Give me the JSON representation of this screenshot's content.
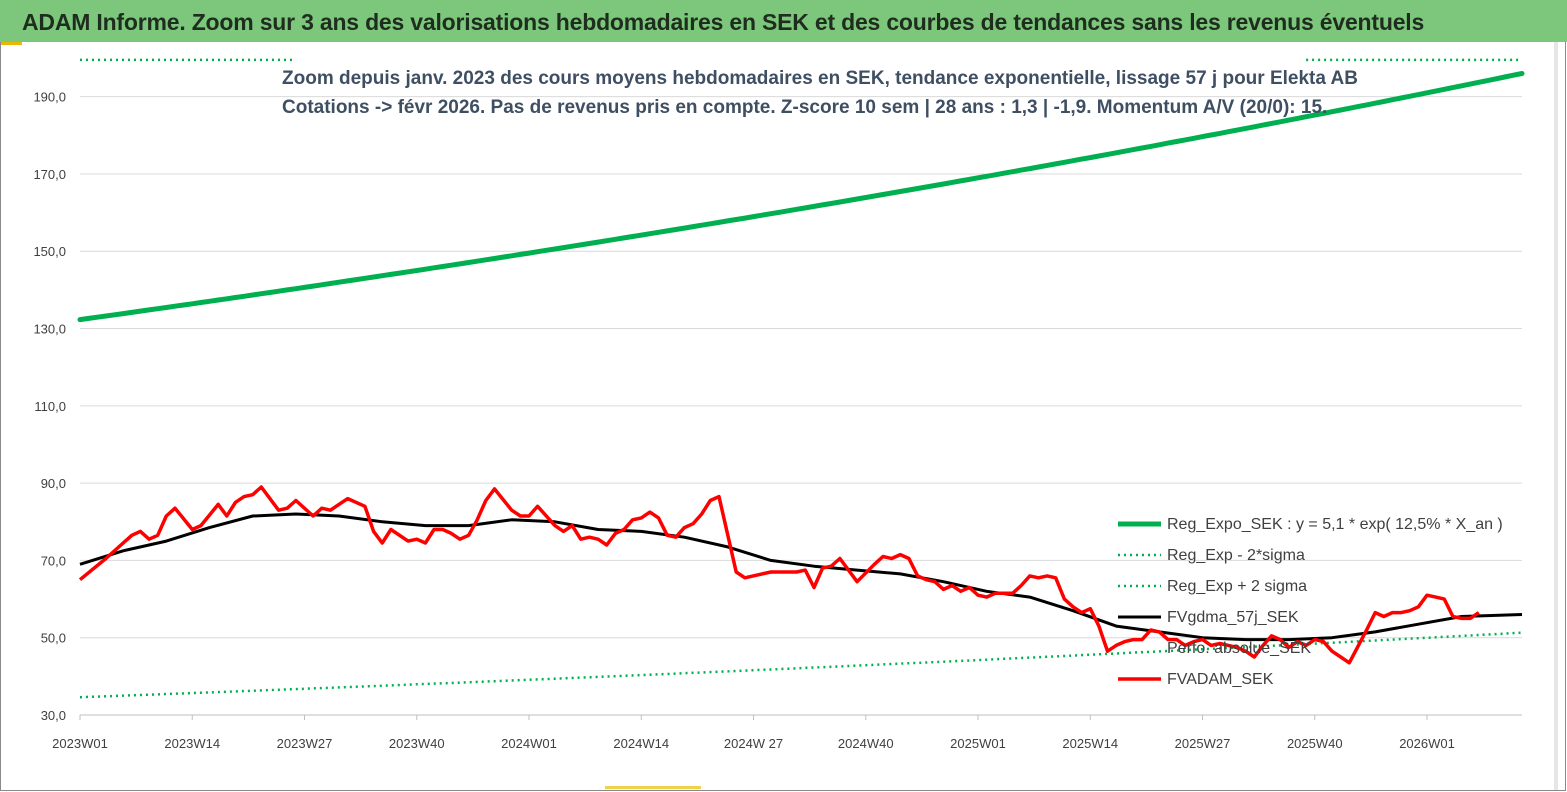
{
  "banner": {
    "title": "ADAM Informe. Zoom sur 3 ans des valorisations hebdomadaires en SEK et des courbes de tendances sans les revenus éventuels"
  },
  "colors": {
    "banner": "#7cc77c",
    "reg_expo": "#00b050",
    "fvgdma": "#000000",
    "fvadam": "#ff0000",
    "text": "#404040"
  },
  "chart_data": {
    "type": "line",
    "title": "Zoom depuis janv. 2023 des cours moyens hebdomadaires en SEK, tendance exponentielle, lissage 57 j pour Elekta AB",
    "subtitle": "Cotations -> févr 2026.  Pas de revenus pris en compte. Z-score 10 sem  | 28 ans : 1,3  | -1,9. Momentum A/V (20/0): 15.",
    "xlabel": "",
    "ylabel": "",
    "ylim": [
      30,
      200
    ],
    "yticks": [
      "30,0",
      "50,0",
      "70,0",
      "90,0",
      "110,0",
      "130,0",
      "150,0",
      "170,0",
      "190,0"
    ],
    "x_labels": [
      "2023W01",
      "2023W14",
      "2023W27",
      "2023W40",
      "2024W01",
      "2024W14",
      "2024W 27",
      "2024W40",
      "2025W01",
      "2025W14",
      "2025W27",
      "2025W40",
      "2026W01"
    ],
    "x_label_weeks": [
      0,
      13,
      26,
      39,
      52,
      65,
      78,
      91,
      104,
      117,
      130,
      143,
      156
    ],
    "x_max_week": 167,
    "grid": "horizontal",
    "legend_position": "bottom-right",
    "legend": [
      "Reg_Expo_SEK : y = 5,1 * exp( 12,5% *  X_an )",
      "Reg_Exp - 2*sigma",
      "Reg_Exp + 2 sigma",
      "FVgdma_57j_SEK",
      "Perfo. absolue_SEK",
      "FVADAM_SEK"
    ],
    "series": [
      {
        "name": "Reg_Expo_SEK : y = 5,1 * exp( 12,5% *  X_an )",
        "style": "solid-thick",
        "points": [
          [
            0,
            132.3
          ],
          [
            167,
            196.0
          ]
        ]
      },
      {
        "name": "Reg_Exp - 2*sigma",
        "style": "dotted",
        "points": [
          [
            0,
            34.6
          ],
          [
            167,
            51.3
          ]
        ]
      },
      {
        "name": "Reg_Exp + 2 sigma",
        "style": "dotted",
        "points": [
          [
            0,
            199.5
          ],
          [
            25,
            199.5
          ],
          [
            142,
            199.5
          ],
          [
            167,
            199.5
          ]
        ]
      },
      {
        "name": "FVgdma_57j_SEK",
        "style": "solid",
        "points": [
          [
            0,
            69.0
          ],
          [
            5,
            72.5
          ],
          [
            10,
            75.0
          ],
          [
            15,
            78.5
          ],
          [
            20,
            81.5
          ],
          [
            25,
            82.0
          ],
          [
            30,
            81.5
          ],
          [
            35,
            80.0
          ],
          [
            40,
            79.0
          ],
          [
            45,
            79.0
          ],
          [
            50,
            80.5
          ],
          [
            55,
            80.0
          ],
          [
            60,
            78.0
          ],
          [
            65,
            77.5
          ],
          [
            70,
            76.0
          ],
          [
            75,
            73.5
          ],
          [
            80,
            70.0
          ],
          [
            85,
            68.5
          ],
          [
            90,
            67.5
          ],
          [
            95,
            66.5
          ],
          [
            100,
            64.5
          ],
          [
            105,
            62.0
          ],
          [
            110,
            60.5
          ],
          [
            115,
            57.0
          ],
          [
            120,
            53.0
          ],
          [
            125,
            51.5
          ],
          [
            130,
            50.0
          ],
          [
            135,
            49.5
          ],
          [
            140,
            49.5
          ],
          [
            145,
            50.0
          ],
          [
            150,
            51.5
          ],
          [
            155,
            53.5
          ],
          [
            160,
            55.5
          ],
          [
            167,
            56.0
          ]
        ]
      },
      {
        "name": "Perfo. absolue_SEK",
        "style": "none",
        "points": []
      },
      {
        "name": "FVADAM_SEK",
        "style": "solid",
        "points": [
          [
            0,
            65.0
          ],
          [
            3,
            70.5
          ],
          [
            6,
            76.5
          ],
          [
            7,
            77.5
          ],
          [
            8,
            75.5
          ],
          [
            9,
            76.5
          ],
          [
            10,
            81.5
          ],
          [
            11,
            83.5
          ],
          [
            13,
            78.0
          ],
          [
            14,
            79.0
          ],
          [
            16,
            84.5
          ],
          [
            17,
            81.5
          ],
          [
            18,
            85.0
          ],
          [
            19,
            86.5
          ],
          [
            20,
            87.0
          ],
          [
            21,
            89.0
          ],
          [
            23,
            83.0
          ],
          [
            24,
            83.5
          ],
          [
            25,
            85.5
          ],
          [
            27,
            81.5
          ],
          [
            28,
            83.5
          ],
          [
            29,
            83.0
          ],
          [
            31,
            86.0
          ],
          [
            33,
            84.0
          ],
          [
            34,
            77.5
          ],
          [
            35,
            74.5
          ],
          [
            36,
            78.0
          ],
          [
            38,
            75.0
          ],
          [
            39,
            75.5
          ],
          [
            40,
            74.5
          ],
          [
            41,
            78.0
          ],
          [
            42,
            78.0
          ],
          [
            43,
            77.0
          ],
          [
            44,
            75.5
          ],
          [
            45,
            76.5
          ],
          [
            46,
            80.5
          ],
          [
            47,
            85.5
          ],
          [
            48,
            88.5
          ],
          [
            50,
            83.0
          ],
          [
            51,
            81.5
          ],
          [
            52,
            81.5
          ],
          [
            53,
            84.0
          ],
          [
            55,
            79.0
          ],
          [
            56,
            77.5
          ],
          [
            57,
            79.0
          ],
          [
            58,
            75.5
          ],
          [
            59,
            76.0
          ],
          [
            60,
            75.5
          ],
          [
            61,
            74.0
          ],
          [
            62,
            77.0
          ],
          [
            63,
            78.0
          ],
          [
            64,
            80.5
          ],
          [
            65,
            81.0
          ],
          [
            66,
            82.5
          ],
          [
            67,
            81.0
          ],
          [
            68,
            76.5
          ],
          [
            69,
            76.0
          ],
          [
            70,
            78.5
          ],
          [
            71,
            79.5
          ],
          [
            72,
            82.0
          ],
          [
            73,
            85.5
          ],
          [
            74,
            86.5
          ],
          [
            76,
            67.0
          ],
          [
            77,
            65.5
          ],
          [
            79,
            66.5
          ],
          [
            80,
            67.0
          ],
          [
            83,
            67.0
          ],
          [
            84,
            67.5
          ],
          [
            85,
            63.0
          ],
          [
            86,
            68.0
          ],
          [
            87,
            68.5
          ],
          [
            88,
            70.5
          ],
          [
            90,
            64.5
          ],
          [
            92,
            69.0
          ],
          [
            93,
            71.0
          ],
          [
            94,
            70.5
          ],
          [
            95,
            71.5
          ],
          [
            96,
            70.5
          ],
          [
            97,
            66.0
          ],
          [
            98,
            65.0
          ],
          [
            99,
            64.5
          ],
          [
            100,
            62.5
          ],
          [
            101,
            63.5
          ],
          [
            102,
            62.0
          ],
          [
            103,
            63.0
          ],
          [
            104,
            61.0
          ],
          [
            105,
            60.5
          ],
          [
            106,
            61.5
          ],
          [
            107,
            61.5
          ],
          [
            108,
            61.5
          ],
          [
            109,
            63.5
          ],
          [
            110,
            66.0
          ],
          [
            111,
            65.5
          ],
          [
            112,
            66.0
          ],
          [
            113,
            65.5
          ],
          [
            114,
            60.0
          ],
          [
            115,
            58.0
          ],
          [
            116,
            56.5
          ],
          [
            117,
            57.5
          ],
          [
            118,
            53.0
          ],
          [
            119,
            46.5
          ],
          [
            120,
            48.0
          ],
          [
            121,
            49.0
          ],
          [
            122,
            49.5
          ],
          [
            123,
            49.5
          ],
          [
            124,
            52.0
          ],
          [
            125,
            51.5
          ],
          [
            126,
            49.5
          ],
          [
            127,
            49.5
          ],
          [
            128,
            48.0
          ],
          [
            129,
            49.0
          ],
          [
            130,
            49.5
          ],
          [
            131,
            48.0
          ],
          [
            132,
            48.5
          ],
          [
            133,
            48.0
          ],
          [
            134,
            47.5
          ],
          [
            135,
            46.5
          ],
          [
            136,
            45.0
          ],
          [
            137,
            48.0
          ],
          [
            138,
            50.5
          ],
          [
            139,
            49.5
          ],
          [
            140,
            47.5
          ],
          [
            141,
            49.0
          ],
          [
            142,
            48.0
          ],
          [
            143,
            49.5
          ],
          [
            144,
            49.0
          ],
          [
            145,
            46.5
          ],
          [
            146,
            45.0
          ],
          [
            147,
            43.5
          ],
          [
            149,
            52.0
          ],
          [
            150,
            56.5
          ],
          [
            151,
            55.5
          ],
          [
            152,
            56.5
          ],
          [
            153,
            56.5
          ],
          [
            154,
            57.0
          ],
          [
            155,
            58.0
          ],
          [
            156,
            61.0
          ],
          [
            157,
            60.5
          ],
          [
            158,
            60.0
          ],
          [
            159,
            55.5
          ],
          [
            160,
            55.0
          ],
          [
            161,
            55.0
          ],
          [
            162,
            56.5
          ]
        ]
      }
    ]
  }
}
